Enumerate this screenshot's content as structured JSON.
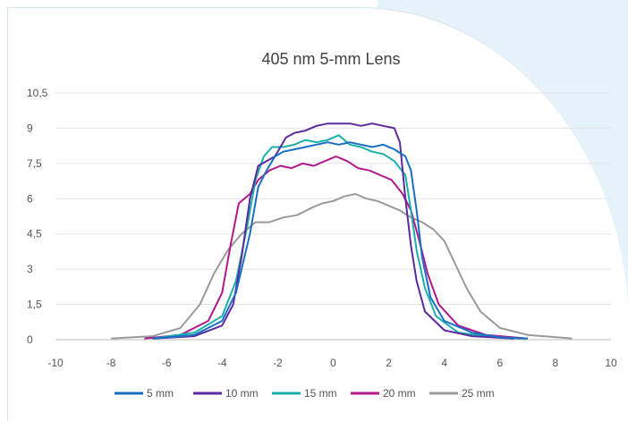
{
  "chart_data": {
    "type": "line",
    "title": "405 nm 5-mm Lens",
    "xlim": [
      -10,
      10
    ],
    "ylim": [
      0,
      10.5
    ],
    "x_ticks": [
      "-10",
      "-8",
      "-6",
      "-4",
      "-2",
      "0",
      "2",
      "4",
      "6",
      "8",
      "10"
    ],
    "y_ticks": [
      "0",
      "1,5",
      "3",
      "4,5",
      "6",
      "7,5",
      "9",
      "10,5"
    ],
    "grid": "horizontal",
    "legend_position": "bottom",
    "series": [
      {
        "name": "5 mm",
        "color": "#1a6fc4",
        "points": [
          [
            -6.5,
            0.05
          ],
          [
            -5,
            0.2
          ],
          [
            -4,
            0.8
          ],
          [
            -3.5,
            2
          ],
          [
            -3,
            4.5
          ],
          [
            -2.7,
            6.5
          ],
          [
            -2.4,
            7.2
          ],
          [
            -2.1,
            7.8
          ],
          [
            -1.8,
            8.0
          ],
          [
            -1.4,
            8.1
          ],
          [
            -1,
            8.2
          ],
          [
            -0.6,
            8.3
          ],
          [
            -0.2,
            8.4
          ],
          [
            0.2,
            8.3
          ],
          [
            0.6,
            8.4
          ],
          [
            1,
            8.3
          ],
          [
            1.4,
            8.2
          ],
          [
            1.8,
            8.3
          ],
          [
            2.2,
            8.1
          ],
          [
            2.6,
            7.8
          ],
          [
            2.8,
            7.2
          ],
          [
            3.0,
            5.5
          ],
          [
            3.2,
            3.5
          ],
          [
            3.5,
            1.8
          ],
          [
            4,
            0.8
          ],
          [
            5,
            0.3
          ],
          [
            6,
            0.1
          ],
          [
            7,
            0.05
          ]
        ]
      },
      {
        "name": "10 mm",
        "color": "#5b2a9e",
        "points": [
          [
            -6.5,
            0.05
          ],
          [
            -5,
            0.15
          ],
          [
            -4,
            0.6
          ],
          [
            -3.6,
            1.5
          ],
          [
            -3.3,
            3.5
          ],
          [
            -3.0,
            6.0
          ],
          [
            -2.7,
            7.4
          ],
          [
            -2.4,
            7.6
          ],
          [
            -2.1,
            7.8
          ],
          [
            -1.7,
            8.6
          ],
          [
            -1.4,
            8.8
          ],
          [
            -1,
            8.9
          ],
          [
            -0.6,
            9.1
          ],
          [
            -0.2,
            9.2
          ],
          [
            0.2,
            9.2
          ],
          [
            0.6,
            9.2
          ],
          [
            1,
            9.1
          ],
          [
            1.4,
            9.2
          ],
          [
            1.8,
            9.1
          ],
          [
            2.2,
            9.0
          ],
          [
            2.4,
            8.4
          ],
          [
            2.6,
            6.0
          ],
          [
            2.8,
            4.0
          ],
          [
            3.0,
            2.5
          ],
          [
            3.3,
            1.2
          ],
          [
            4,
            0.4
          ],
          [
            5,
            0.15
          ],
          [
            6.5,
            0.05
          ]
        ]
      },
      {
        "name": "15 mm",
        "color": "#1ab0aa",
        "points": [
          [
            -6.5,
            0.05
          ],
          [
            -5,
            0.3
          ],
          [
            -4,
            1.0
          ],
          [
            -3.5,
            2.5
          ],
          [
            -3.1,
            4.8
          ],
          [
            -2.8,
            6.8
          ],
          [
            -2.5,
            7.8
          ],
          [
            -2.2,
            8.2
          ],
          [
            -1.8,
            8.2
          ],
          [
            -1.4,
            8.3
          ],
          [
            -1,
            8.5
          ],
          [
            -0.6,
            8.4
          ],
          [
            -0.2,
            8.5
          ],
          [
            0.2,
            8.7
          ],
          [
            0.6,
            8.3
          ],
          [
            1,
            8.2
          ],
          [
            1.4,
            8.0
          ],
          [
            1.8,
            7.9
          ],
          [
            2.2,
            7.6
          ],
          [
            2.6,
            7.0
          ],
          [
            2.8,
            5.5
          ],
          [
            3.0,
            3.8
          ],
          [
            3.3,
            2.2
          ],
          [
            3.7,
            1.0
          ],
          [
            4.5,
            0.3
          ],
          [
            6,
            0.08
          ],
          [
            7,
            0.05
          ]
        ]
      },
      {
        "name": "20 mm",
        "color": "#b0198c",
        "points": [
          [
            -6.8,
            0.05
          ],
          [
            -5.5,
            0.2
          ],
          [
            -4.5,
            0.8
          ],
          [
            -4,
            2.0
          ],
          [
            -3.7,
            4.0
          ],
          [
            -3.4,
            5.8
          ],
          [
            -3.0,
            6.2
          ],
          [
            -2.7,
            6.8
          ],
          [
            -2.3,
            7.2
          ],
          [
            -1.9,
            7.4
          ],
          [
            -1.5,
            7.3
          ],
          [
            -1.1,
            7.5
          ],
          [
            -0.7,
            7.4
          ],
          [
            -0.3,
            7.6
          ],
          [
            0.1,
            7.8
          ],
          [
            0.5,
            7.6
          ],
          [
            0.9,
            7.3
          ],
          [
            1.3,
            7.2
          ],
          [
            1.7,
            7.0
          ],
          [
            2.1,
            6.8
          ],
          [
            2.5,
            6.2
          ],
          [
            2.8,
            5.5
          ],
          [
            3.1,
            4.2
          ],
          [
            3.4,
            2.8
          ],
          [
            3.8,
            1.5
          ],
          [
            4.5,
            0.6
          ],
          [
            5.5,
            0.2
          ],
          [
            7,
            0.05
          ]
        ]
      },
      {
        "name": "25 mm",
        "color": "#9a9a9a",
        "points": [
          [
            -8,
            0.05
          ],
          [
            -6.5,
            0.15
          ],
          [
            -5.5,
            0.5
          ],
          [
            -4.8,
            1.5
          ],
          [
            -4.3,
            2.8
          ],
          [
            -3.8,
            3.8
          ],
          [
            -3.3,
            4.5
          ],
          [
            -2.8,
            5.0
          ],
          [
            -2.3,
            5.0
          ],
          [
            -1.8,
            5.2
          ],
          [
            -1.3,
            5.3
          ],
          [
            -0.8,
            5.6
          ],
          [
            -0.4,
            5.8
          ],
          [
            0,
            5.9
          ],
          [
            0.4,
            6.1
          ],
          [
            0.8,
            6.2
          ],
          [
            1.2,
            6.0
          ],
          [
            1.6,
            5.9
          ],
          [
            2.0,
            5.7
          ],
          [
            2.4,
            5.5
          ],
          [
            2.8,
            5.2
          ],
          [
            3.2,
            5.0
          ],
          [
            3.6,
            4.7
          ],
          [
            4.0,
            4.2
          ],
          [
            4.4,
            3.2
          ],
          [
            4.8,
            2.2
          ],
          [
            5.3,
            1.2
          ],
          [
            6,
            0.5
          ],
          [
            7,
            0.2
          ],
          [
            8.6,
            0.05
          ]
        ]
      }
    ]
  }
}
